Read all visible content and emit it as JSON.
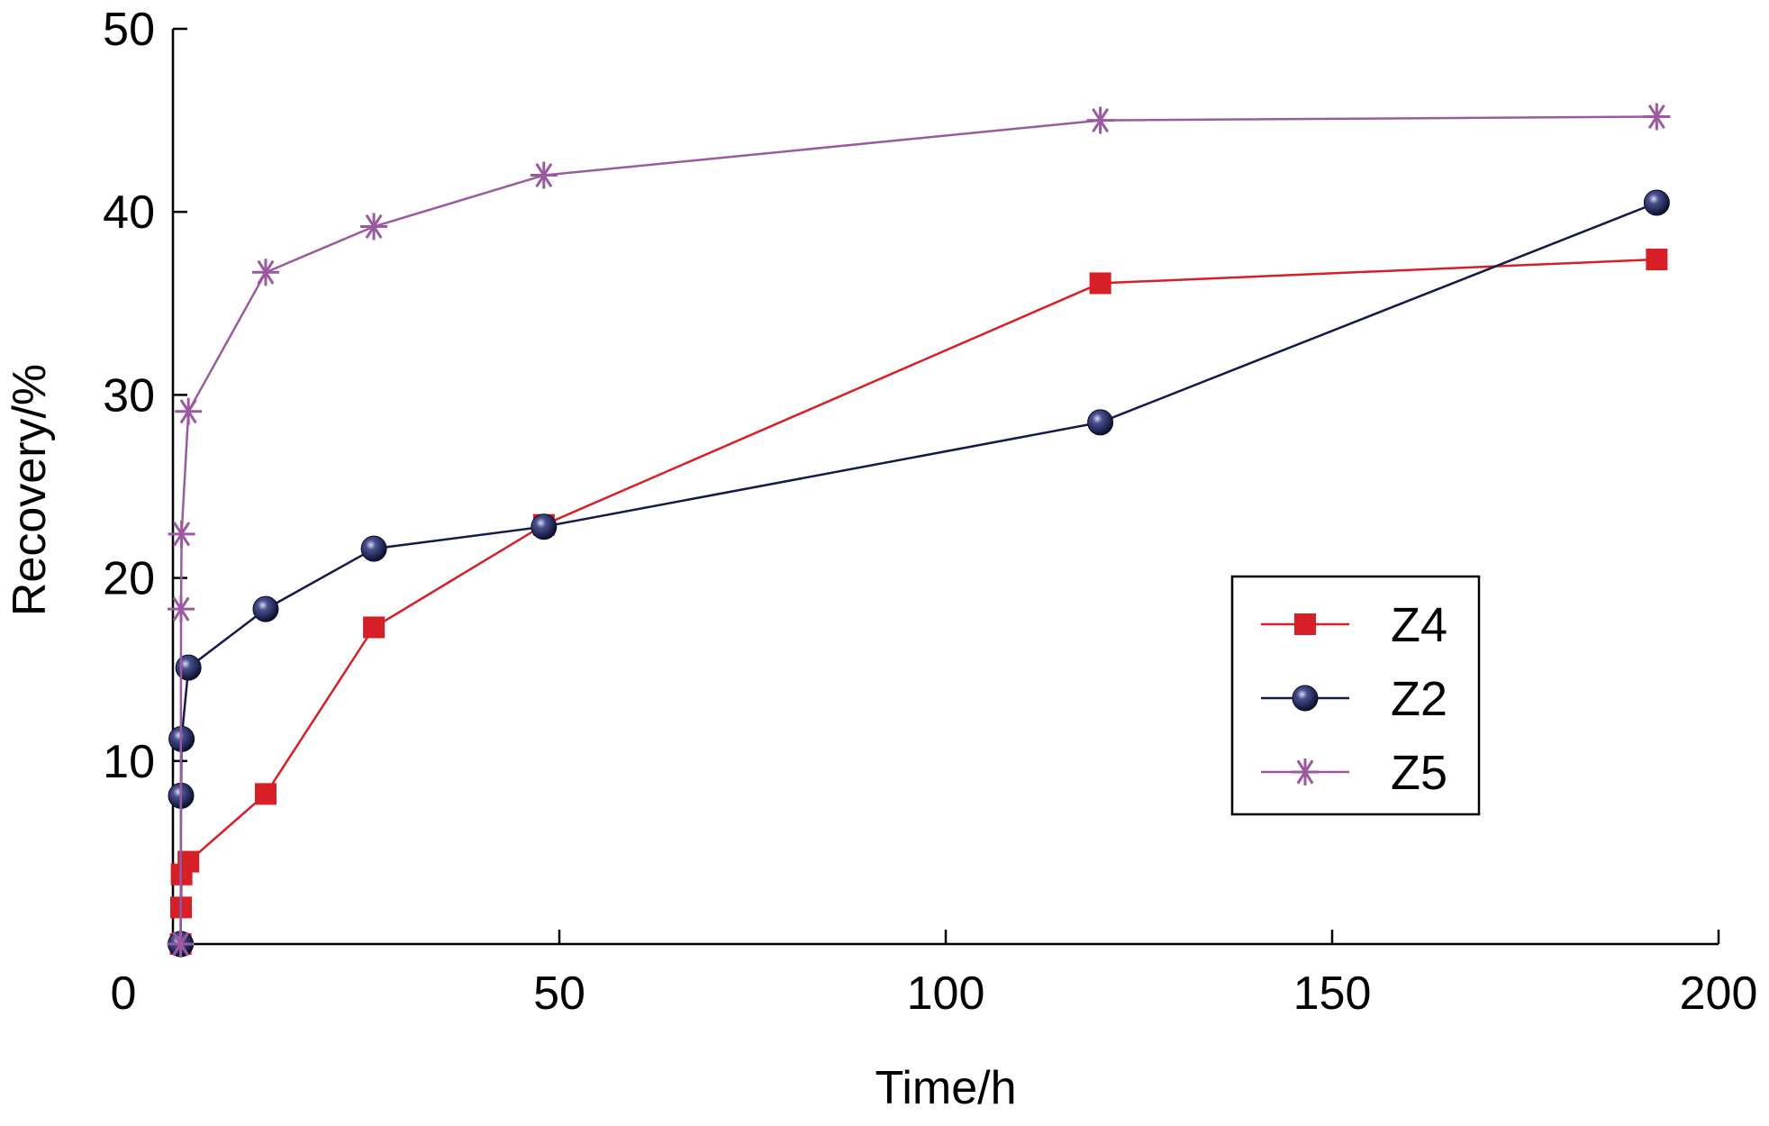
{
  "chart_data": {
    "type": "line",
    "title": "",
    "xlabel": "Time/h",
    "ylabel": "Recovery/%",
    "xlim": [
      0,
      200
    ],
    "ylim": [
      0,
      50
    ],
    "x_ticks": [
      0,
      50,
      100,
      150,
      200
    ],
    "y_ticks": [
      10,
      20,
      30,
      40,
      50
    ],
    "x_tick_labels": [
      "0",
      "50",
      "100",
      "150",
      "200"
    ],
    "y_tick_labels": [
      "10",
      "20",
      "30",
      "40",
      "50"
    ],
    "grid": false,
    "legend_position": "right",
    "series": [
      {
        "name": "Z4",
        "color": "#d61f26",
        "marker": "square",
        "x": [
          1,
          1,
          1,
          2,
          12,
          26,
          48,
          120,
          192
        ],
        "y": [
          0,
          2.0,
          3.8,
          4.5,
          8.2,
          17.3,
          22.9,
          36.1,
          37.4
        ]
      },
      {
        "name": "Z2",
        "color": "#141a4a",
        "marker": "sphere",
        "x": [
          1,
          1,
          1,
          2,
          12,
          26,
          48,
          120,
          192
        ],
        "y": [
          0,
          8.1,
          11.2,
          15.1,
          18.3,
          21.6,
          22.8,
          28.5,
          40.5
        ]
      },
      {
        "name": "Z5",
        "color": "#9b5aa0",
        "marker": "asterisk",
        "x": [
          1,
          1,
          1,
          2,
          12,
          26,
          48,
          120,
          192
        ],
        "y": [
          0,
          18.3,
          22.4,
          29.1,
          36.7,
          39.2,
          42.0,
          45.0,
          45.2
        ]
      }
    ]
  }
}
